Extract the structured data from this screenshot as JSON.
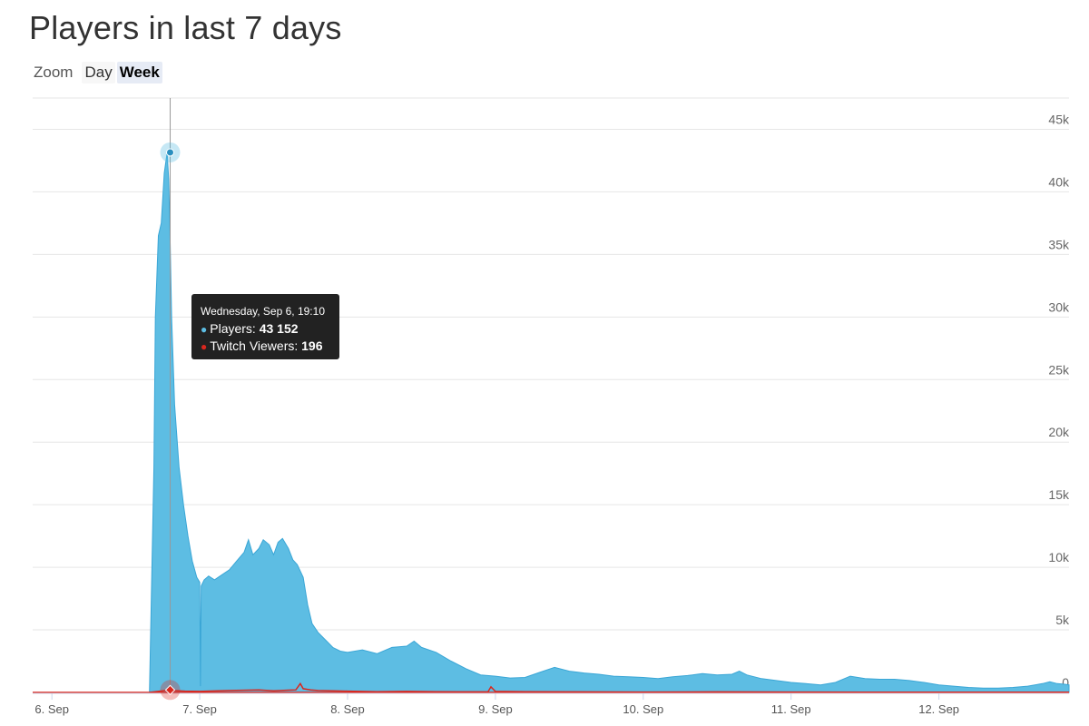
{
  "title": "Players in last 7 days",
  "zoom": {
    "label": "Zoom",
    "options": [
      "Day",
      "Week"
    ],
    "active": "Week"
  },
  "tooltip": {
    "date": "Wednesday, Sep 6, 19:10",
    "players_label": "Players:",
    "players_value": "43 152",
    "twitch_label": "Twitch Viewers:",
    "twitch_value": "196"
  },
  "colors": {
    "players": "#5dbde3",
    "players_line": "#3aa6d6",
    "twitch": "#d9271e",
    "grid": "#e6e6e6",
    "tooltip_bg": "#222222"
  },
  "chart_data": {
    "type": "area",
    "title": "Players in last 7 days",
    "x_unit": "days since Sep 6 00:00",
    "x_ticks": [
      "6. Sep",
      "7. Sep",
      "8. Sep",
      "9. Sep",
      "10. Sep",
      "11. Sep",
      "12. Sep"
    ],
    "y_ticks": [
      "0",
      "5k",
      "10k",
      "15k",
      "20k",
      "25k",
      "30k",
      "35k",
      "40k",
      "45k"
    ],
    "ylim": [
      0,
      47500
    ],
    "xlim": [
      -0.13,
      6.88
    ],
    "grid": true,
    "series": [
      {
        "name": "Players",
        "x": [
          0.66,
          0.69,
          0.7,
          0.72,
          0.74,
          0.76,
          0.78,
          0.79,
          0.8,
          0.81,
          0.83,
          0.86,
          0.89,
          0.92,
          0.95,
          0.98,
          1.0,
          1.005,
          1.01,
          1.03,
          1.06,
          1.1,
          1.15,
          1.2,
          1.25,
          1.3,
          1.33,
          1.36,
          1.4,
          1.43,
          1.47,
          1.5,
          1.53,
          1.56,
          1.6,
          1.63,
          1.66,
          1.7,
          1.73,
          1.76,
          1.8,
          1.85,
          1.9,
          1.95,
          2.0,
          2.1,
          2.2,
          2.3,
          2.4,
          2.45,
          2.5,
          2.6,
          2.7,
          2.8,
          2.9,
          3.0,
          3.1,
          3.2,
          3.3,
          3.4,
          3.5,
          3.6,
          3.7,
          3.8,
          3.9,
          4.0,
          4.1,
          4.2,
          4.3,
          4.4,
          4.5,
          4.6,
          4.65,
          4.7,
          4.8,
          4.9,
          5.0,
          5.1,
          5.2,
          5.3,
          5.4,
          5.5,
          5.6,
          5.7,
          5.8,
          5.9,
          6.0,
          6.1,
          6.2,
          6.3,
          6.4,
          6.5,
          6.6,
          6.7,
          6.75,
          6.8,
          6.85,
          6.88
        ],
        "y": [
          0,
          18000,
          30000,
          36500,
          37500,
          41500,
          43152,
          41000,
          36000,
          30000,
          23000,
          18000,
          15000,
          12500,
          10500,
          9200,
          8800,
          500,
          8500,
          9000,
          9300,
          9000,
          9400,
          9800,
          10500,
          11200,
          12200,
          11000,
          11500,
          12200,
          11800,
          11000,
          12000,
          12300,
          11500,
          10600,
          10200,
          9200,
          7000,
          5500,
          4800,
          4200,
          3600,
          3300,
          3200,
          3400,
          3100,
          3600,
          3700,
          4100,
          3600,
          3200,
          2500,
          1900,
          1400,
          1300,
          1150,
          1200,
          1600,
          2000,
          1700,
          1550,
          1450,
          1300,
          1250,
          1200,
          1100,
          1250,
          1350,
          1500,
          1400,
          1450,
          1700,
          1400,
          1100,
          950,
          800,
          700,
          600,
          800,
          1300,
          1100,
          1050,
          1050,
          950,
          800,
          600,
          500,
          400,
          350,
          350,
          400,
          500,
          700,
          850,
          700,
          650,
          600
        ]
      },
      {
        "name": "Twitch Viewers",
        "x": [
          0.66,
          0.75,
          0.78,
          0.81,
          0.9,
          1.0,
          1.2,
          1.4,
          1.5,
          1.6,
          1.65,
          1.68,
          1.7,
          1.75,
          1.8,
          2.0,
          2.2,
          2.4,
          2.6,
          2.8,
          2.95,
          2.97,
          3.0,
          3.2,
          3.5,
          4.0,
          4.5,
          5.0,
          5.5,
          6.0,
          6.5,
          6.88
        ],
        "y": [
          0,
          120,
          196,
          150,
          100,
          80,
          150,
          200,
          120,
          180,
          200,
          700,
          300,
          200,
          150,
          100,
          60,
          80,
          60,
          40,
          60,
          450,
          80,
          60,
          40,
          30,
          40,
          30,
          20,
          20,
          20,
          20
        ]
      }
    ],
    "highlight": {
      "x": 0.8,
      "players": 43152,
      "twitch": 196
    }
  }
}
